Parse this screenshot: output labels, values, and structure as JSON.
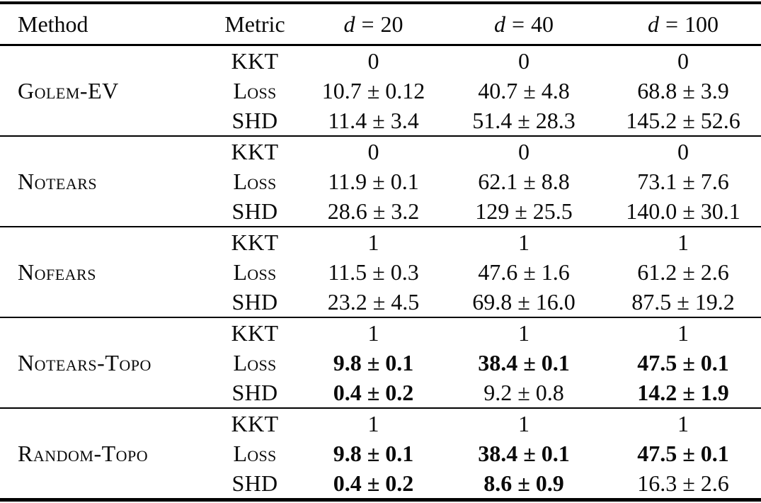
{
  "page": {
    "background": "#ffffff",
    "text_color": "#0a0a0a"
  },
  "chart_data": {
    "type": "table",
    "title": "",
    "columns": [
      "Method",
      "Metric",
      "d = 20",
      "d = 40",
      "d = 100"
    ]
  },
  "table": {
    "columns": [
      {
        "label": "Method"
      },
      {
        "label": "Metric"
      },
      {
        "math_var": "d",
        "math_eq": "=",
        "math_value": "20"
      },
      {
        "math_var": "d",
        "math_eq": "=",
        "math_value": "40"
      },
      {
        "math_var": "d",
        "math_eq": "=",
        "math_value": "100"
      }
    ],
    "groups": [
      {
        "method": "Golem-EV",
        "rows": [
          {
            "metric": "KKT",
            "values": [
              {
                "text": "0",
                "bold": false
              },
              {
                "text": "0",
                "bold": false
              },
              {
                "text": "0",
                "bold": false
              }
            ]
          },
          {
            "metric": "Loss",
            "values": [
              {
                "text": "10.7 ± 0.12",
                "bold": false
              },
              {
                "text": "40.7 ± 4.8",
                "bold": false
              },
              {
                "text": "68.8 ± 3.9",
                "bold": false
              }
            ]
          },
          {
            "metric": "SHD",
            "values": [
              {
                "text": "11.4 ± 3.4",
                "bold": false
              },
              {
                "text": "51.4 ± 28.3",
                "bold": false
              },
              {
                "text": "145.2 ± 52.6",
                "bold": false
              }
            ]
          }
        ]
      },
      {
        "method": "Notears",
        "rows": [
          {
            "metric": "KKT",
            "values": [
              {
                "text": "0",
                "bold": false
              },
              {
                "text": "0",
                "bold": false
              },
              {
                "text": "0",
                "bold": false
              }
            ]
          },
          {
            "metric": "Loss",
            "values": [
              {
                "text": "11.9 ± 0.1",
                "bold": false
              },
              {
                "text": "62.1 ± 8.8",
                "bold": false
              },
              {
                "text": "73.1 ± 7.6",
                "bold": false
              }
            ]
          },
          {
            "metric": "SHD",
            "values": [
              {
                "text": "28.6 ± 3.2",
                "bold": false
              },
              {
                "text": "129 ± 25.5",
                "bold": false
              },
              {
                "text": "140.0 ± 30.1",
                "bold": false
              }
            ]
          }
        ]
      },
      {
        "method": "Nofears",
        "rows": [
          {
            "metric": "KKT",
            "values": [
              {
                "text": "1",
                "bold": false
              },
              {
                "text": "1",
                "bold": false
              },
              {
                "text": "1",
                "bold": false
              }
            ]
          },
          {
            "metric": "Loss",
            "values": [
              {
                "text": "11.5 ± 0.3",
                "bold": false
              },
              {
                "text": "47.6 ± 1.6",
                "bold": false
              },
              {
                "text": "61.2 ± 2.6",
                "bold": false
              }
            ]
          },
          {
            "metric": "SHD",
            "values": [
              {
                "text": "23.2 ± 4.5",
                "bold": false
              },
              {
                "text": "69.8 ± 16.0",
                "bold": false
              },
              {
                "text": "87.5 ± 19.2",
                "bold": false
              }
            ]
          }
        ]
      },
      {
        "method": "Notears-Topo",
        "rows": [
          {
            "metric": "KKT",
            "values": [
              {
                "text": "1",
                "bold": false
              },
              {
                "text": "1",
                "bold": false
              },
              {
                "text": "1",
                "bold": false
              }
            ]
          },
          {
            "metric": "Loss",
            "values": [
              {
                "text": "9.8 ± 0.1",
                "bold": true
              },
              {
                "text": "38.4 ± 0.1",
                "bold": true
              },
              {
                "text": "47.5 ± 0.1",
                "bold": true
              }
            ]
          },
          {
            "metric": "SHD",
            "values": [
              {
                "text": "0.4 ± 0.2",
                "bold": true
              },
              {
                "text": "9.2 ± 0.8",
                "bold": false
              },
              {
                "text": "14.2 ± 1.9",
                "bold": true
              }
            ]
          }
        ]
      },
      {
        "method": "Random-Topo",
        "rows": [
          {
            "metric": "KKT",
            "values": [
              {
                "text": "1",
                "bold": false
              },
              {
                "text": "1",
                "bold": false
              },
              {
                "text": "1",
                "bold": false
              }
            ]
          },
          {
            "metric": "Loss",
            "values": [
              {
                "text": "9.8 ± 0.1",
                "bold": true
              },
              {
                "text": "38.4 ± 0.1",
                "bold": true
              },
              {
                "text": "47.5 ± 0.1",
                "bold": true
              }
            ]
          },
          {
            "metric": "SHD",
            "values": [
              {
                "text": "0.4 ± 0.2",
                "bold": true
              },
              {
                "text": "8.6 ± 0.9",
                "bold": true
              },
              {
                "text": "16.3 ± 2.6",
                "bold": false
              }
            ]
          }
        ]
      }
    ]
  }
}
